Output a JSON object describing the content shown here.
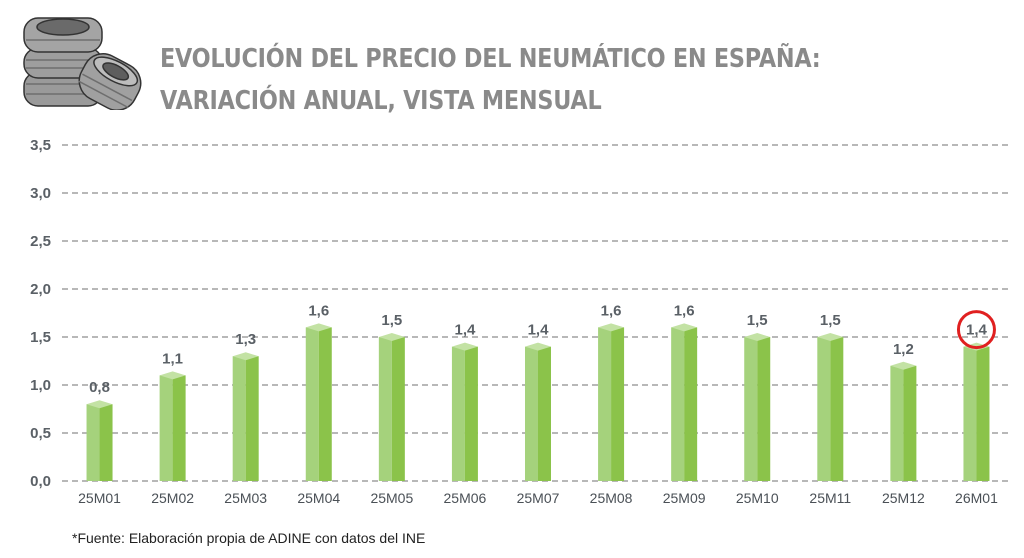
{
  "header": {
    "logo_icon": "tire-stack-icon",
    "title_line1": "EVOLUCIÓN DEL PRECIO DEL NEUMÁTICO EN ESPAÑA:",
    "title_line2": "VARIACIÓN ANUAL, VISTA MENSUAL"
  },
  "footer": {
    "source": "*Fuente: Elaboración propia de ADINE con datos del INE"
  },
  "colors": {
    "bar_light": "#a5d27c",
    "bar_dark": "#8bc34a",
    "bar_top": "#c3e2a4",
    "grid": "#8e8e8e",
    "highlight_circle": "#e02020",
    "title": "#8a8a8a"
  },
  "chart_data": {
    "type": "bar",
    "title": "EVOLUCIÓN DEL PRECIO DEL NEUMÁTICO EN ESPAÑA: VARIACIÓN ANUAL, VISTA MENSUAL",
    "xlabel": "",
    "ylabel": "",
    "categories": [
      "25M01",
      "25M02",
      "25M03",
      "25M04",
      "25M05",
      "25M06",
      "25M07",
      "25M08",
      "25M09",
      "25M10",
      "25M11",
      "25M12",
      "26M01"
    ],
    "values": [
      0.8,
      1.1,
      1.3,
      1.6,
      1.5,
      1.4,
      1.4,
      1.6,
      1.6,
      1.5,
      1.5,
      1.2,
      1.4
    ],
    "value_labels": [
      "0,8",
      "1,1",
      "1,3",
      "1,6",
      "1,5",
      "1,4",
      "1,4",
      "1,6",
      "1,6",
      "1,5",
      "1,5",
      "1,2",
      "1,4"
    ],
    "ylim": [
      0,
      3.5
    ],
    "yticks": [
      0,
      0.5,
      1.0,
      1.5,
      2.0,
      2.5,
      3.0,
      3.5
    ],
    "ytick_labels": [
      "0,0",
      "0,5",
      "1,0",
      "1,5",
      "2,0",
      "2,5",
      "3,0",
      "3,5"
    ],
    "grid": "horizontal-dashed",
    "legend": "none",
    "highlighted_category": "26M01",
    "annotation": "red circle around the 26M01 value label"
  }
}
